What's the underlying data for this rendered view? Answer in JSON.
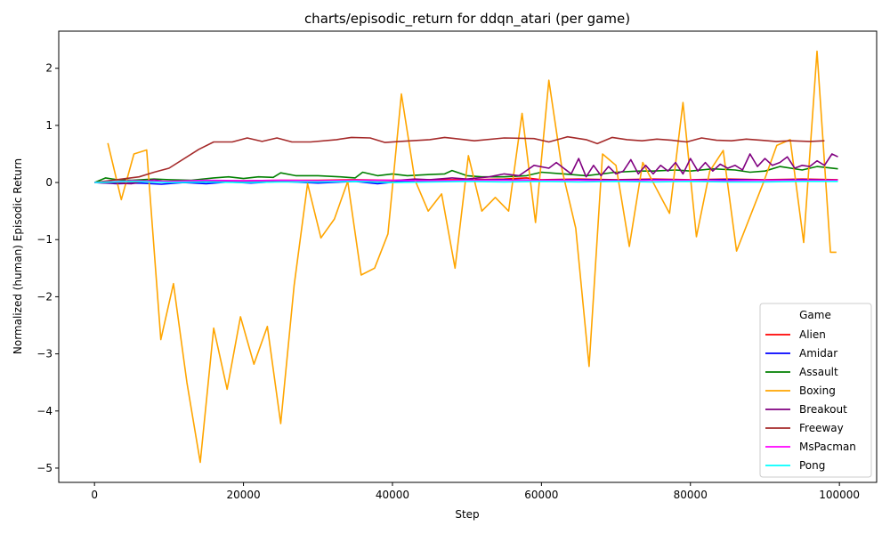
{
  "chart_data": {
    "type": "line",
    "title": "charts/episodic_return for ddqn_atari (per game)",
    "xlabel": "Step",
    "ylabel": "Normalized (human) Episodic Return",
    "xlim": [
      -4800,
      105000
    ],
    "ylim": [
      -5.25,
      2.65
    ],
    "xticks": [
      0,
      20000,
      40000,
      60000,
      80000,
      100000
    ],
    "xtick_labels": [
      "0",
      "20000",
      "40000",
      "60000",
      "80000",
      "100000"
    ],
    "yticks": [
      -5,
      -4,
      -3,
      -2,
      -1,
      0,
      1,
      2
    ],
    "ytick_labels": [
      "−5",
      "−4",
      "−3",
      "−2",
      "−1",
      "0",
      "1",
      "2"
    ],
    "grid": false,
    "legend": {
      "title": "Game",
      "placement": "bottom-right"
    },
    "series": [
      {
        "name": "Alien",
        "color": "#ff0000",
        "x": [
          0,
          5000,
          10000,
          15000,
          20000,
          25000,
          30000,
          35000,
          40000,
          45000,
          50000,
          55000,
          58000,
          60000,
          65000,
          70000,
          75000,
          80000,
          85000,
          90000,
          95000,
          99800
        ],
        "y": [
          0,
          0.01,
          0.02,
          0.03,
          0.03,
          0.04,
          0.04,
          0.05,
          0.04,
          0.05,
          0.05,
          0.06,
          0.08,
          0.05,
          0.06,
          0.05,
          0.06,
          0.05,
          0.06,
          0.05,
          0.06,
          0.05
        ]
      },
      {
        "name": "Amidar",
        "color": "#0000ff",
        "x": [
          0,
          3000,
          6000,
          9000,
          12000,
          15000,
          18000,
          21000,
          25000,
          30000,
          35000,
          38000,
          42000,
          46000,
          50000,
          55000,
          60000,
          65000,
          70000,
          75000,
          80000,
          85000,
          90000,
          95000,
          99800
        ],
        "y": [
          0,
          -0.02,
          -0.01,
          -0.03,
          0.0,
          -0.02,
          0.01,
          -0.01,
          0.02,
          -0.01,
          0.02,
          -0.02,
          0.03,
          0.02,
          0.04,
          0.05,
          0.04,
          0.05,
          0.04,
          0.05,
          0.04,
          0.05,
          0.04,
          0.05,
          0.04
        ]
      },
      {
        "name": "Assault",
        "color": "#008000",
        "x": [
          0,
          1500,
          3000,
          5000,
          8000,
          10000,
          13000,
          16000,
          18000,
          20000,
          22000,
          24000,
          25000,
          27000,
          30000,
          33000,
          35000,
          36000,
          38000,
          40000,
          42000,
          45000,
          47000,
          48000,
          50000,
          52000,
          55000,
          58000,
          60000,
          63000,
          66000,
          70000,
          73000,
          75000,
          78000,
          80000,
          83000,
          86000,
          88000,
          90000,
          92000,
          95000,
          97000,
          99800
        ],
        "y": [
          0,
          0.08,
          0.05,
          0.04,
          0.06,
          0.05,
          0.04,
          0.08,
          0.1,
          0.07,
          0.1,
          0.09,
          0.17,
          0.12,
          0.12,
          0.1,
          0.08,
          0.18,
          0.12,
          0.15,
          0.12,
          0.14,
          0.15,
          0.21,
          0.12,
          0.1,
          0.1,
          0.12,
          0.18,
          0.15,
          0.12,
          0.18,
          0.2,
          0.2,
          0.22,
          0.2,
          0.24,
          0.22,
          0.18,
          0.2,
          0.28,
          0.22,
          0.28,
          0.24
        ]
      },
      {
        "name": "Boxing",
        "color": "#ffa500",
        "x": [
          1800,
          3600,
          5300,
          7000,
          8900,
          10600,
          12400,
          14200,
          16000,
          17800,
          19600,
          21400,
          23200,
          25000,
          26800,
          28600,
          30400,
          32200,
          34000,
          35800,
          37600,
          39400,
          41200,
          43000,
          44800,
          46600,
          48400,
          50200,
          52000,
          53800,
          55600,
          57400,
          59200,
          61000,
          62800,
          64600,
          66400,
          68200,
          70000,
          71800,
          73600,
          75400,
          77200,
          79000,
          80800,
          82600,
          84400,
          86200,
          88000,
          89800,
          91600,
          93400,
          95200,
          97000,
          98800,
          99600
        ],
        "y": [
          0.69,
          -0.3,
          0.5,
          0.57,
          -2.75,
          -1.77,
          -3.5,
          -4.9,
          -2.55,
          -3.62,
          -2.35,
          -3.18,
          -2.52,
          -4.22,
          -1.8,
          -0.02,
          -0.97,
          -0.64,
          0.02,
          -1.62,
          -1.5,
          -0.9,
          1.55,
          0.05,
          -0.5,
          -0.2,
          -1.5,
          0.47,
          -0.5,
          -0.26,
          -0.5,
          1.21,
          -0.7,
          1.79,
          0.2,
          -0.8,
          -3.22,
          0.5,
          0.3,
          -1.12,
          0.35,
          -0.1,
          -0.54,
          1.4,
          -0.95,
          0.2,
          0.56,
          -1.2,
          -0.6,
          0.0,
          0.65,
          0.75,
          -1.05,
          2.3,
          -1.22,
          -1.22
        ]
      },
      {
        "name": "Breakout",
        "color": "#800080",
        "x": [
          0,
          5000,
          8000,
          10000,
          15000,
          20000,
          25000,
          30000,
          35000,
          40000,
          43000,
          45000,
          48000,
          50000,
          53000,
          55000,
          57000,
          59000,
          61000,
          62000,
          64000,
          65000,
          66000,
          67000,
          68000,
          69000,
          70000,
          71000,
          72000,
          73000,
          74000,
          75000,
          76000,
          77000,
          78000,
          79000,
          80000,
          81000,
          82000,
          83000,
          84000,
          85000,
          86000,
          87000,
          88000,
          89000,
          90000,
          91000,
          92000,
          93000,
          94000,
          95000,
          96000,
          97000,
          98000,
          99000,
          99800
        ],
        "y": [
          0,
          -0.02,
          0.05,
          0.0,
          0.03,
          0.02,
          0.03,
          0.02,
          0.04,
          0.03,
          0.06,
          0.05,
          0.08,
          0.06,
          0.1,
          0.15,
          0.12,
          0.3,
          0.25,
          0.35,
          0.15,
          0.42,
          0.1,
          0.3,
          0.12,
          0.28,
          0.15,
          0.2,
          0.4,
          0.15,
          0.3,
          0.15,
          0.3,
          0.2,
          0.35,
          0.15,
          0.42,
          0.2,
          0.35,
          0.2,
          0.32,
          0.25,
          0.3,
          0.22,
          0.5,
          0.28,
          0.42,
          0.3,
          0.35,
          0.45,
          0.25,
          0.3,
          0.28,
          0.38,
          0.3,
          0.5,
          0.45
        ]
      },
      {
        "name": "Freeway",
        "color": "#a52a2a",
        "x": [
          0,
          6000,
          8000,
          10000,
          14000,
          16000,
          18500,
          20500,
          22500,
          24500,
          26500,
          29000,
          32500,
          34500,
          37000,
          39000,
          41000,
          45000,
          47000,
          51000,
          55000,
          59000,
          61000,
          63500,
          66000,
          67500,
          69500,
          71500,
          73500,
          75500,
          77500,
          79500,
          81500,
          83500,
          85500,
          87500,
          89500,
          91500,
          93500,
          96000,
          98000
        ],
        "y": [
          0,
          0.1,
          0.18,
          0.25,
          0.58,
          0.71,
          0.71,
          0.78,
          0.72,
          0.78,
          0.71,
          0.71,
          0.75,
          0.79,
          0.78,
          0.7,
          0.72,
          0.75,
          0.79,
          0.73,
          0.78,
          0.77,
          0.71,
          0.8,
          0.75,
          0.68,
          0.79,
          0.75,
          0.73,
          0.76,
          0.74,
          0.71,
          0.78,
          0.74,
          0.73,
          0.76,
          0.74,
          0.72,
          0.73,
          0.72,
          0.73
        ]
      },
      {
        "name": "MsPacman",
        "color": "#ff00ff",
        "x": [
          0,
          5000,
          10000,
          15000,
          20000,
          25000,
          30000,
          35000,
          40000,
          45000,
          50000,
          55000,
          60000,
          65000,
          70000,
          75000,
          80000,
          85000,
          90000,
          95000,
          99800
        ],
        "y": [
          0,
          0.03,
          0.02,
          0.04,
          0.03,
          0.04,
          0.03,
          0.04,
          0.04,
          0.03,
          0.04,
          0.04,
          0.04,
          0.04,
          0.03,
          0.04,
          0.04,
          0.03,
          0.04,
          0.04,
          0.04
        ]
      },
      {
        "name": "Pong",
        "color": "#00ffff",
        "x": [
          0,
          5000,
          10000,
          15000,
          20000,
          25000,
          30000,
          35000,
          40000,
          45000,
          50000,
          55000,
          60000,
          65000,
          70000,
          75000,
          80000,
          85000,
          90000,
          95000,
          99800
        ],
        "y": [
          0,
          0.02,
          0.0,
          0.01,
          0.0,
          0.01,
          0.01,
          0.02,
          0.0,
          0.01,
          0.02,
          0.01,
          0.02,
          0.01,
          0.02,
          0.01,
          0.02,
          0.01,
          0.01,
          0.02,
          0.02
        ]
      }
    ]
  }
}
